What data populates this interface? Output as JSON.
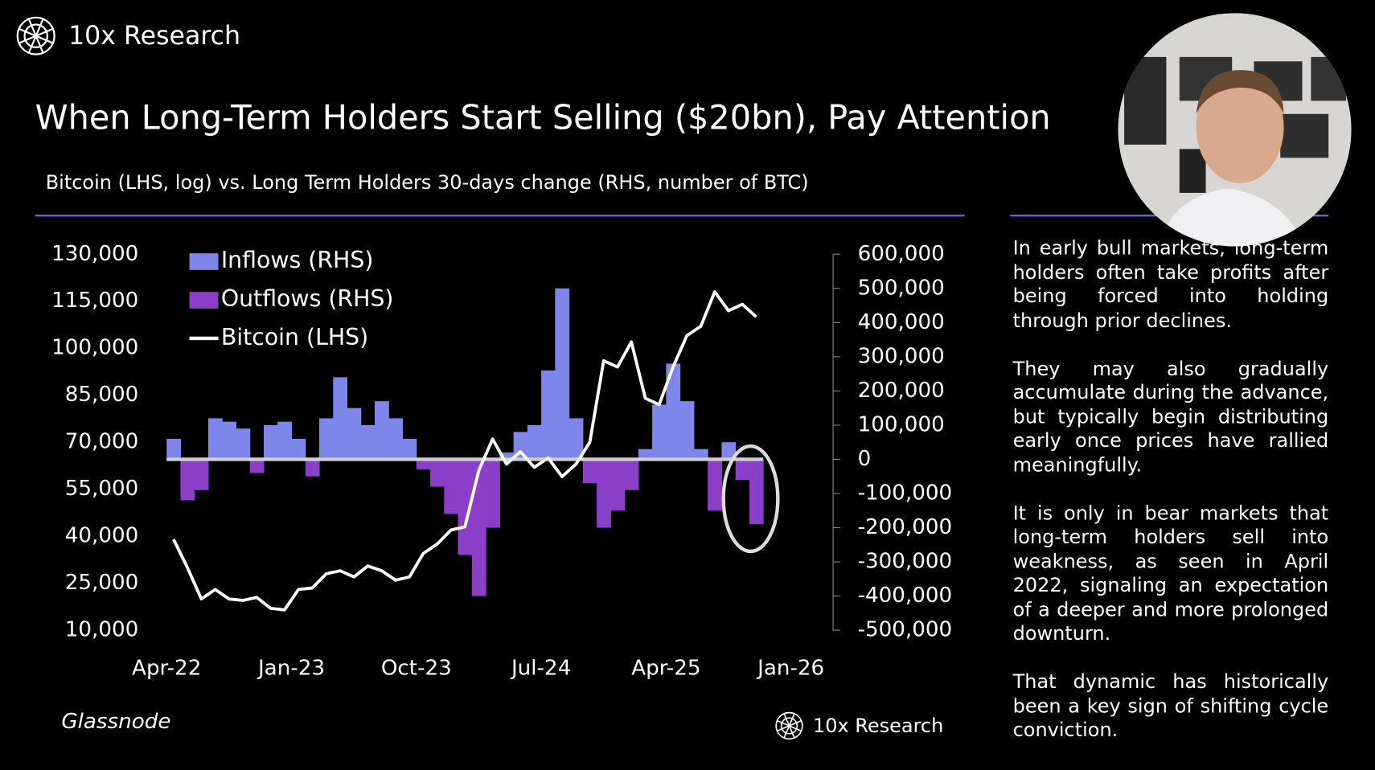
{
  "brand": "10x Research",
  "footer_brand": "10x Research",
  "source": "Glassnode",
  "paragraphs": [
    "In early bull markets, long-term holders often take profits after being forced into holding through prior declines.",
    "They may also gradually accumulate during the advance, but typically begin distributing early once prices have rallied meaningfully.",
    "It is only in bear markets that long-term holders sell into weakness, as seen in April 2022, signaling an expectation of a deeper and more prolonged downturn.",
    "That dynamic has historically been a key sign of shifting cycle conviction."
  ],
  "chart_data": {
    "type": "bar",
    "title": "When Long-Term Holders Start Selling ($20bn), Pay Attention",
    "subtitle": "Bitcoin (LHS, log) vs. Long Term Holders 30-days change (RHS, number of BTC)",
    "x": [
      "2022-04",
      "2022-05",
      "2022-06",
      "2022-07",
      "2022-08",
      "2022-09",
      "2022-10",
      "2022-11",
      "2022-12",
      "2023-01",
      "2023-02",
      "2023-03",
      "2023-04",
      "2023-05",
      "2023-06",
      "2023-07",
      "2023-08",
      "2023-09",
      "2023-10",
      "2023-11",
      "2023-12",
      "2024-01",
      "2024-02",
      "2024-03",
      "2024-04",
      "2024-05",
      "2024-06",
      "2024-07",
      "2024-08",
      "2024-09",
      "2024-10",
      "2024-11",
      "2024-12",
      "2025-01",
      "2025-02",
      "2025-03",
      "2025-04",
      "2025-05",
      "2025-06",
      "2025-07",
      "2025-08",
      "2025-09",
      "2025-10"
    ],
    "xlim": [
      "2022-04",
      "2026-01"
    ],
    "xticks": [
      {
        "value": "2022-04",
        "label": "Apr-22"
      },
      {
        "value": "2023-01",
        "label": "Jan-23"
      },
      {
        "value": "2023-10",
        "label": "Oct-23"
      },
      {
        "value": "2024-07",
        "label": "Jul-24"
      },
      {
        "value": "2025-04",
        "label": "Apr-25"
      },
      {
        "value": "2026-01",
        "label": "Jan-26"
      }
    ],
    "ylim": [
      10000,
      130000
    ],
    "yticks": [
      {
        "value": 10000,
        "label": "10,000"
      },
      {
        "value": 25000,
        "label": "25,000"
      },
      {
        "value": 40000,
        "label": "40,000"
      },
      {
        "value": 55000,
        "label": "55,000"
      },
      {
        "value": 70000,
        "label": "70,000"
      },
      {
        "value": 85000,
        "label": "85,000"
      },
      {
        "value": 100000,
        "label": "100,000"
      },
      {
        "value": 115000,
        "label": "115,000"
      },
      {
        "value": 130000,
        "label": "130,000"
      }
    ],
    "y2lim": [
      -500000,
      600000
    ],
    "y2ticks": [
      {
        "value": -500000,
        "label": "-500,000"
      },
      {
        "value": -400000,
        "label": "-400,000"
      },
      {
        "value": -300000,
        "label": "-300,000"
      },
      {
        "value": -200000,
        "label": "-200,000"
      },
      {
        "value": -100000,
        "label": "-100,000"
      },
      0,
      {
        "value": 100000,
        "label": "100,000"
      },
      {
        "value": 200000,
        "label": "200,000"
      },
      {
        "value": 300000,
        "label": "300,000"
      },
      {
        "value": 400000,
        "label": "400,000"
      },
      {
        "value": 500000,
        "label": "500,000"
      },
      {
        "value": 600000,
        "label": "600,000"
      }
    ],
    "series": [
      {
        "name": "Inflows (RHS)",
        "type": "bar",
        "axis": "y2",
        "color": "#7f86ea",
        "values": [
          60000,
          null,
          null,
          120000,
          110000,
          90000,
          null,
          100000,
          110000,
          60000,
          null,
          120000,
          240000,
          150000,
          100000,
          170000,
          120000,
          60000,
          null,
          null,
          null,
          null,
          null,
          null,
          20000,
          80000,
          100000,
          260000,
          500000,
          120000,
          null,
          null,
          null,
          null,
          30000,
          160000,
          280000,
          170000,
          30000,
          null,
          50000,
          null,
          null
        ]
      },
      {
        "name": "Outflows (RHS)",
        "type": "bar",
        "axis": "y2",
        "color": "#8b3ec8",
        "values": [
          null,
          -120000,
          -90000,
          null,
          null,
          null,
          -40000,
          null,
          null,
          null,
          -50000,
          null,
          null,
          null,
          null,
          null,
          null,
          null,
          -30000,
          -80000,
          -160000,
          -280000,
          -400000,
          -200000,
          null,
          null,
          null,
          null,
          null,
          null,
          -70000,
          -200000,
          -150000,
          -90000,
          null,
          null,
          null,
          null,
          null,
          -150000,
          null,
          -60000,
          -190000
        ]
      },
      {
        "name": "Bitcoin (LHS)",
        "type": "line",
        "color": "#ffffff",
        "values": [
          39000,
          30000,
          20000,
          23000,
          20000,
          19500,
          20500,
          17000,
          16500,
          23000,
          23500,
          28000,
          29000,
          27000,
          30500,
          29000,
          26000,
          27000,
          34500,
          37500,
          42000,
          43000,
          61000,
          71000,
          63000,
          67000,
          62000,
          65000,
          59000,
          63000,
          70000,
          96000,
          94000,
          102000,
          84000,
          82000,
          94000,
          104000,
          107000,
          118000,
          112000,
          114000,
          110000
        ]
      }
    ]
  }
}
